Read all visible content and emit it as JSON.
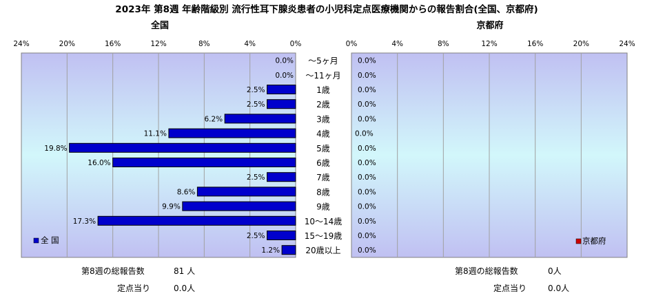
{
  "chart_data": {
    "type": "bar",
    "title": "2023年 第8週 年齢階級別 流行性耳下腺炎患者の小児科定点医療機関からの報告割合(全国、京都府)",
    "categories": [
      "～5ヶ月",
      "～11ヶ月",
      "1歳",
      "2歳",
      "3歳",
      "4歳",
      "5歳",
      "6歳",
      "7歳",
      "8歳",
      "9歳",
      "10～14歳",
      "15～19歳",
      "20歳以上"
    ],
    "panels": [
      {
        "title": "全国",
        "direction": "left",
        "xlim": [
          0,
          24
        ],
        "ticks": [
          "0%",
          "4%",
          "8%",
          "12%",
          "16%",
          "20%",
          "24%"
        ],
        "legend": "全 国",
        "legend_position": "bottom-left",
        "series": [
          {
            "name": "全 国",
            "color": "#0000cc",
            "values": [
              0.0,
              0.0,
              2.5,
              2.5,
              6.2,
              11.1,
              19.8,
              16.0,
              2.5,
              8.6,
              9.9,
              17.3,
              2.5,
              1.2
            ]
          }
        ],
        "labels": [
          "0.0%",
          "0.0%",
          "2.5%",
          "2.5%",
          "6.2%",
          "11.1%",
          "19.8%",
          "16.0%",
          "2.5%",
          "8.6%",
          "9.9%",
          "17.3%",
          "2.5%",
          "1.2%"
        ]
      },
      {
        "title": "京都府",
        "direction": "right",
        "xlim": [
          0,
          24
        ],
        "ticks": [
          "0%",
          "4%",
          "8%",
          "12%",
          "16%",
          "20%",
          "24%"
        ],
        "legend": "京都府",
        "legend_position": "bottom-right",
        "series": [
          {
            "name": "京都府",
            "color": "#cc0000",
            "values": [
              0,
              0,
              0,
              0,
              0,
              0,
              0,
              0,
              0,
              0,
              0,
              0,
              0,
              0
            ]
          }
        ],
        "labels": [
          "0.0%",
          "0.0%",
          "0.0%",
          "0.0%",
          "0.0%",
          "0.0%",
          "0.0%",
          "0.0%",
          "0.0%",
          "0.0%",
          "0.0%",
          "0.0%",
          "0.0%",
          "0.0%"
        ]
      }
    ]
  },
  "footer": {
    "left": {
      "total_label": "第8週の総報告数",
      "total_value": "81 人",
      "per_label": "定点当り",
      "per_value": "0.0人"
    },
    "right": {
      "total_label": "第8週の総報告数",
      "total_value": "0人",
      "per_label": "定点当り",
      "per_value": "0.0人"
    }
  }
}
